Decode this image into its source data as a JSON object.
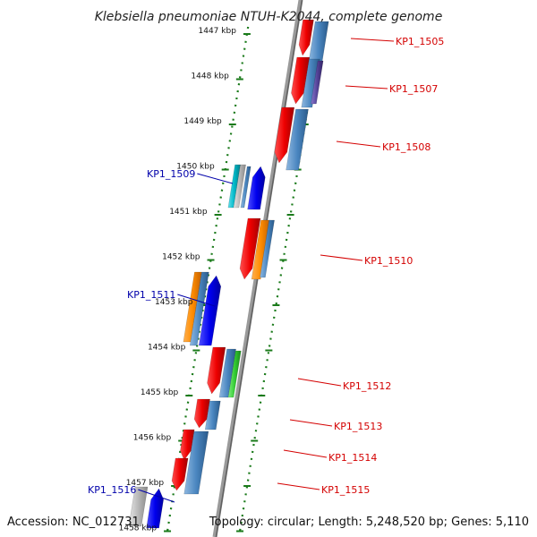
{
  "title": "Klebsiella pneumoniae NTUH-K2044, complete genome",
  "footer": {
    "accession": "Accession: NC_012731",
    "topology": "Topology: circular; Length: 5,248,520 bp; Genes: 5,110"
  },
  "scale_labels": [
    "1447 kbp",
    "1448 kbp",
    "1449 kbp",
    "1450 kbp",
    "1451 kbp",
    "1452 kbp",
    "1453 kbp",
    "1454 kbp",
    "1455 kbp",
    "1456 kbp",
    "1457 kbp",
    "1458 kbp"
  ],
  "gene_labels": [
    {
      "id": "KP1_1505",
      "strand": "plus"
    },
    {
      "id": "KP1_1507",
      "strand": "plus"
    },
    {
      "id": "KP1_1508",
      "strand": "plus"
    },
    {
      "id": "KP1_1509",
      "strand": "minus"
    },
    {
      "id": "KP1_1510",
      "strand": "plus"
    },
    {
      "id": "KP1_1511",
      "strand": "minus"
    },
    {
      "id": "KP1_1512",
      "strand": "plus"
    },
    {
      "id": "KP1_1513",
      "strand": "plus"
    },
    {
      "id": "KP1_1514",
      "strand": "plus"
    },
    {
      "id": "KP1_1515",
      "strand": "plus"
    },
    {
      "id": "KP1_1516",
      "strand": "minus"
    }
  ],
  "colors": {
    "plus_label": "#d40000",
    "minus_label": "#0000aa",
    "backbone": "#808080",
    "scale_ticks": "#1a7a1a",
    "red_gene": "#ee0000",
    "steel_gene": "#4a86c0",
    "blue_gene": "#0000ee",
    "orange_gene": "#ff8c00",
    "cyan_gene": "#00b8c8",
    "green_gene": "#33cc33",
    "grey_gene": "#b8b8b8",
    "purple_gene": "#554499"
  }
}
